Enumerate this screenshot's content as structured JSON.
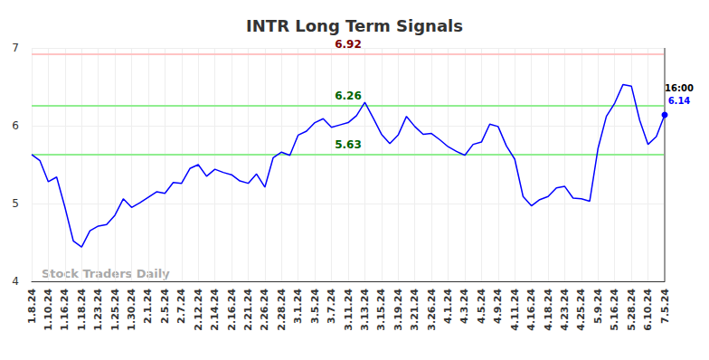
{
  "chart_data": {
    "type": "line",
    "title": "INTR Long Term Signals",
    "categories": [
      "1.8.24",
      null,
      "1.10.24",
      null,
      "1.16.24",
      null,
      "1.18.24",
      null,
      "1.23.24",
      null,
      "1.25.24",
      null,
      "1.30.24",
      null,
      "2.1.24",
      null,
      "2.5.24",
      null,
      "2.7.24",
      null,
      "2.12.24",
      null,
      "2.14.24",
      null,
      "2.16.24",
      null,
      "2.21.24",
      null,
      "2.26.24",
      null,
      "2.28.24",
      null,
      "3.1.24",
      null,
      "3.5.24",
      null,
      "3.7.24",
      null,
      "3.11.24",
      null,
      "3.13.24",
      null,
      "3.15.24",
      null,
      "3.19.24",
      null,
      "3.21.24",
      null,
      "3.26.24",
      null,
      "4.1.24",
      null,
      "4.3.24",
      null,
      "4.5.24",
      null,
      "4.9.24",
      null,
      "4.11.24",
      null,
      "4.16.24",
      null,
      "4.18.24",
      null,
      "4.23.24",
      null,
      "4.25.24",
      null,
      "5.9.24",
      null,
      "5.16.24",
      null,
      "5.28.24",
      null,
      "6.10.24",
      null,
      "7.5.24"
    ],
    "values": [
      5.63,
      5.55,
      5.28,
      5.34,
      4.95,
      4.52,
      4.44,
      4.65,
      4.71,
      4.73,
      4.85,
      5.06,
      4.95,
      5.01,
      5.08,
      5.15,
      5.13,
      5.27,
      5.26,
      5.45,
      5.5,
      5.35,
      5.44,
      5.4,
      5.37,
      5.29,
      5.26,
      5.38,
      5.21,
      5.59,
      5.66,
      5.62,
      5.88,
      5.93,
      6.04,
      6.09,
      5.98,
      6.01,
      6.04,
      6.13,
      6.3,
      6.1,
      5.89,
      5.77,
      5.88,
      6.12,
      5.99,
      5.89,
      5.9,
      5.82,
      5.73,
      5.67,
      5.62,
      5.76,
      5.79,
      6.02,
      5.99,
      5.74,
      5.57,
      5.09,
      4.97,
      5.05,
      5.09,
      5.2,
      5.22,
      5.07,
      5.06,
      5.03,
      5.71,
      6.12,
      6.29,
      6.53,
      6.51,
      6.07,
      5.76,
      5.86,
      6.14
    ],
    "color": "#0000ff",
    "ylim": [
      4,
      7
    ],
    "yticks": [
      4,
      5,
      6,
      7
    ],
    "grid": true,
    "reference_lines": [
      {
        "value": 6.92,
        "color": "#ffc4c4",
        "label_color": "#800000"
      },
      {
        "value": 6.26,
        "color": "#90ee90",
        "label_color": "#006400"
      },
      {
        "value": 5.63,
        "color": "#90ee90",
        "label_color": "#006400"
      }
    ],
    "last_point_time": "16:00",
    "watermark": "Stock Traders Daily"
  }
}
